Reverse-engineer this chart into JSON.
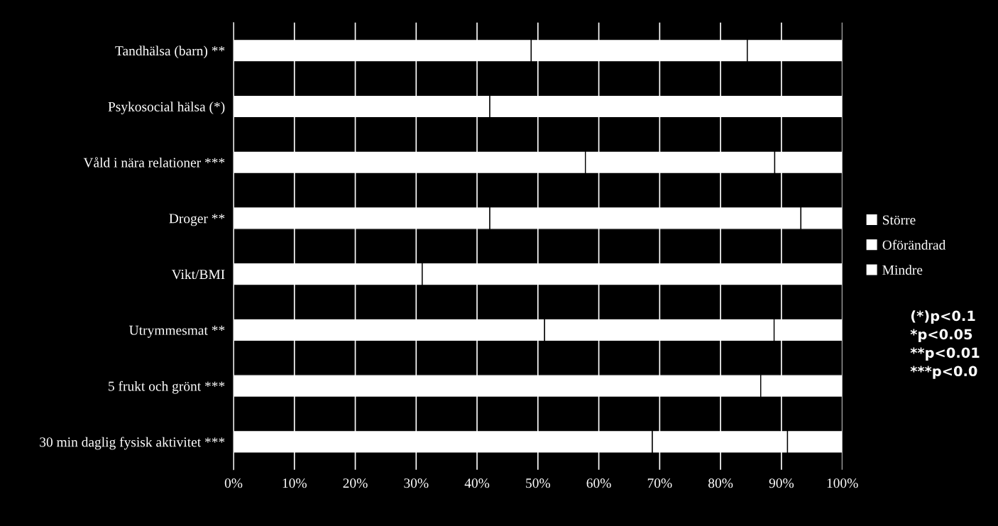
{
  "chart_data": {
    "type": "bar",
    "orientation": "horizontal",
    "stacked": true,
    "categories": [
      "Tandhälsa (barn) **",
      "Psykosocial hälsa (*)",
      "Våld i nära relationer ***",
      "Droger **",
      "Vikt/BMI",
      "Utrymmesmat **",
      "5 frukt och grönt ***",
      "30 min daglig fysisk aktivitet ***"
    ],
    "series": [
      {
        "name": "Mindre",
        "color": "#ffffff",
        "values": [
          48.9,
          42.1,
          57.8,
          42.1,
          31.0,
          51.1,
          86.6,
          68.8
        ]
      },
      {
        "name": "Oförändrad",
        "color": "#ffffff",
        "values": [
          35.5,
          57.9,
          31.1,
          51.1,
          69.0,
          37.7,
          13.4,
          22.2
        ]
      },
      {
        "name": "Större",
        "color": "#ffffff",
        "values": [
          15.6,
          null,
          11.1,
          6.8,
          null,
          11.2,
          null,
          9.0
        ]
      }
    ],
    "xlim": [
      0,
      100
    ],
    "xticks": [
      {
        "value": 0,
        "label": "0%"
      },
      {
        "value": 10,
        "label": "10%"
      },
      {
        "value": 20,
        "label": "20%"
      },
      {
        "value": 30,
        "label": "30%"
      },
      {
        "value": 40,
        "label": "40%"
      },
      {
        "value": 50,
        "label": "50%"
      },
      {
        "value": 60,
        "label": "60%"
      },
      {
        "value": 70,
        "label": "70%"
      },
      {
        "value": 80,
        "label": "80%"
      },
      {
        "value": 90,
        "label": "90%"
      },
      {
        "value": 100,
        "label": "100%"
      }
    ],
    "grid": "x",
    "legend": "right",
    "annotations": [
      "(*)p<0.1",
      "*p<0.05",
      "**p<0.01",
      "***p<0.0"
    ]
  }
}
